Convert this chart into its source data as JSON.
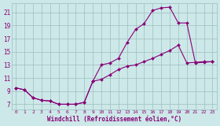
{
  "background_color": "#cde8e8",
  "grid_color": "#9bbfbf",
  "line_color": "#880077",
  "xlabel": "Windchill (Refroidissement éolien,°C)",
  "xlim": [
    -0.5,
    23.5
  ],
  "ylim": [
    6.2,
    22.4
  ],
  "xticks": [
    0,
    1,
    2,
    3,
    4,
    5,
    6,
    7,
    8,
    9,
    10,
    11,
    12,
    13,
    14,
    15,
    16,
    17,
    18,
    19,
    20,
    21,
    22,
    23
  ],
  "yticks": [
    7,
    9,
    11,
    13,
    15,
    17,
    19,
    21
  ],
  "curve1_x": [
    0,
    1,
    2,
    3,
    4,
    5,
    6,
    7,
    8,
    9,
    10,
    11,
    12,
    13,
    14,
    15,
    16,
    17,
    18,
    19,
    20,
    21,
    22,
    23
  ],
  "curve1_y": [
    9.5,
    9.2,
    8.0,
    7.6,
    7.5,
    7.0,
    7.0,
    7.0,
    7.3,
    10.5,
    13.0,
    13.3,
    14.0,
    16.4,
    18.4,
    19.3,
    21.3,
    21.7,
    21.8,
    19.4,
    19.4,
    13.3,
    13.4,
    13.5
  ],
  "curve2_x": [
    0,
    1,
    2,
    3,
    4,
    5,
    6,
    7,
    8,
    9,
    10,
    11,
    12,
    13,
    14,
    15,
    16,
    17,
    18,
    19,
    20,
    21,
    22,
    23
  ],
  "curve2_y": [
    9.5,
    9.2,
    8.0,
    7.6,
    7.5,
    7.0,
    7.0,
    7.0,
    7.3,
    10.5,
    10.8,
    11.5,
    12.3,
    12.8,
    13.0,
    13.5,
    14.0,
    14.6,
    15.2,
    16.0,
    13.3,
    13.4,
    13.5,
    13.5
  ]
}
